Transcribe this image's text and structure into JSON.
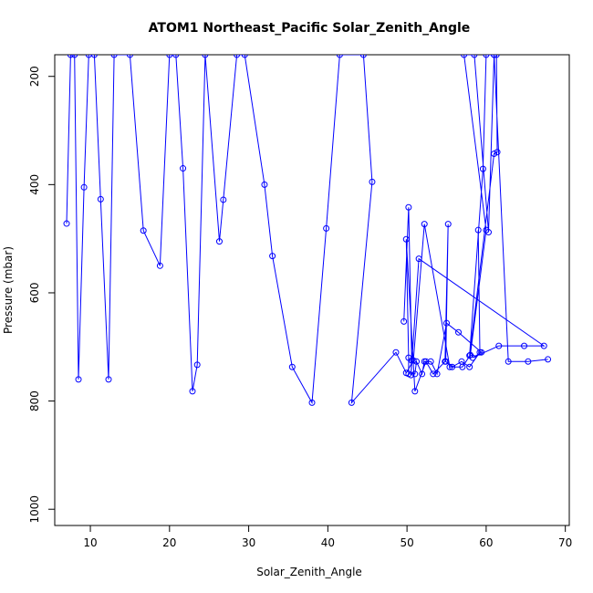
{
  "chart_data": {
    "type": "line",
    "title": "ATOM1 Northeast_Pacific Solar_Zenith_Angle",
    "xlabel": "Solar_Zenith_Angle",
    "ylabel": "Pressure (mbar)",
    "xlim": [
      5.5,
      70.5
    ],
    "ylim": [
      1030,
      160
    ],
    "y_reversed": true,
    "xticks": [
      10,
      20,
      30,
      40,
      50,
      60,
      70
    ],
    "yticks": [
      200,
      400,
      600,
      800,
      1000
    ],
    "grid": false,
    "legend": "none",
    "colors": {
      "series": "#0000ff",
      "frame": "#000000"
    },
    "marker": "open-circle",
    "series": [
      {
        "points": [
          [
            7.0,
            472
          ],
          [
            7.5,
            160
          ],
          [
            8.0,
            160
          ],
          [
            8.5,
            760
          ],
          [
            9.2,
            405
          ],
          [
            9.8,
            160
          ],
          [
            10.5,
            160
          ],
          [
            11.3,
            427
          ],
          [
            12.3,
            760
          ],
          [
            13.0,
            160
          ],
          [
            15.0,
            160
          ],
          [
            16.7,
            485
          ],
          [
            18.8,
            550
          ],
          [
            20.0,
            160
          ],
          [
            20.8,
            160
          ],
          [
            21.7,
            370
          ],
          [
            22.9,
            782
          ],
          [
            23.5,
            733
          ],
          [
            24.5,
            160
          ],
          [
            26.3,
            505
          ],
          [
            26.8,
            428
          ],
          [
            28.5,
            160
          ],
          [
            29.5,
            160
          ],
          [
            32.0,
            400
          ],
          [
            33.0,
            532
          ],
          [
            35.5,
            737
          ],
          [
            38.0,
            803
          ],
          [
            39.8,
            481
          ],
          [
            41.5,
            160
          ],
          [
            44.5,
            160
          ],
          [
            45.6,
            395
          ],
          [
            43.0,
            803
          ],
          [
            48.6,
            710
          ],
          [
            49.9,
            748
          ],
          [
            50.8,
            725
          ],
          [
            52.2,
            473
          ],
          [
            55.4,
            737
          ],
          [
            57.0,
            737
          ],
          [
            58.0,
            715
          ],
          [
            60.0,
            484
          ],
          [
            57.2,
            160
          ],
          [
            58.5,
            160
          ],
          [
            60.3,
            488
          ],
          [
            61.0,
            160
          ],
          [
            61.3,
            160
          ],
          [
            61.4,
            340
          ],
          [
            61.0,
            343
          ],
          [
            57.9,
            716
          ],
          [
            59.6,
            371
          ],
          [
            60.0,
            160
          ],
          [
            61.0,
            160
          ],
          [
            62.8,
            727
          ],
          [
            65.3,
            727
          ],
          [
            67.8,
            723
          ]
        ]
      },
      {
        "points": [
          [
            49.6,
            653
          ],
          [
            50.2,
            442
          ],
          [
            50.6,
            725
          ],
          [
            50.5,
            752
          ],
          [
            51.5,
            537
          ],
          [
            67.3,
            698
          ],
          [
            64.8,
            698
          ],
          [
            61.6,
            698
          ],
          [
            58.3,
            720
          ],
          [
            59.4,
            710
          ],
          [
            56.5,
            673
          ],
          [
            55.0,
            656
          ],
          [
            53.8,
            750
          ],
          [
            53.0,
            727
          ],
          [
            52.2,
            727
          ],
          [
            51.9,
            750
          ],
          [
            51.2,
            727
          ],
          [
            51.0,
            750
          ],
          [
            50.2,
            750
          ],
          [
            50.2,
            720
          ],
          [
            49.9,
            501
          ],
          [
            51.0,
            782
          ],
          [
            52.4,
            727
          ],
          [
            53.3,
            750
          ],
          [
            54.8,
            727
          ],
          [
            55.2,
            473
          ],
          [
            54.9,
            727
          ],
          [
            55.7,
            737
          ],
          [
            56.9,
            727
          ],
          [
            57.9,
            737
          ],
          [
            59.2,
            710
          ],
          [
            59.0,
            484
          ]
        ]
      }
    ]
  }
}
